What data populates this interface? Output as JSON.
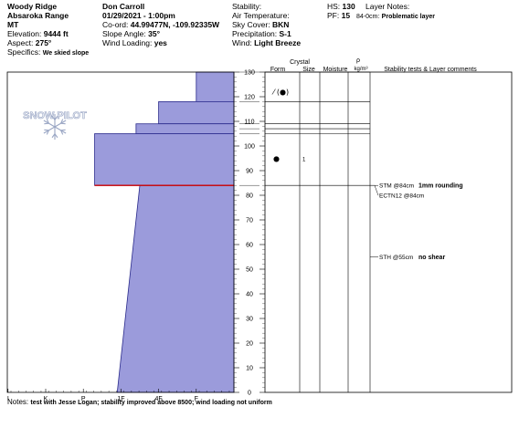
{
  "header": {
    "location": "Woody Ridge",
    "range": "Absaroka Range",
    "state": "MT",
    "elevation_label": "Elevation:",
    "elevation": "9444 ft",
    "aspect_label": "Aspect:",
    "aspect": "275°",
    "specifics_label": "Specifics:",
    "specifics": "We skied slope",
    "observer": "Don Carroll",
    "datetime": "01/29/2021 - 1:00pm",
    "coord_label": "Co-ord:",
    "coord": "44.99477N, -109.92335W",
    "slope_label": "Slope Angle:",
    "slope": "35°",
    "wind_loading_label": "Wind Loading:",
    "wind_loading": "yes",
    "stability_label": "Stability:",
    "stability": "",
    "air_temp_label": "Air Temperature:",
    "air_temp": "",
    "sky_label": "Sky Cover:",
    "sky": "BKN",
    "precip_label": "Precipitation:",
    "precip": "S-1",
    "wind_label": "Wind:",
    "wind": "Light Breeze",
    "hs_label": "HS:",
    "hs": "130",
    "pf_label": "PF:",
    "pf": "15",
    "layer_notes_label": "Layer Notes:",
    "layer_note_depth": "84-0cm:",
    "layer_note_text": "Problematic layer"
  },
  "logo_text": "SNOW PILOT",
  "columns": {
    "form": "Form",
    "crystal": "Crystal",
    "size": "Size",
    "moisture": "Moisture",
    "rho": "ρ",
    "density_unit": "kg/m³",
    "comments": "Stability tests & Layer comments"
  },
  "notes_label": "Notes:",
  "notes": "test with Jesse Logan; stability improved above 8500; wind loading not uniform",
  "colors": {
    "fill": "#9b9bdb",
    "stroke": "#2b2b8c",
    "weak_layer": "#cc0000"
  },
  "chart_data": {
    "type": "snow-profile",
    "depth_axis": {
      "min": 0,
      "max": 130,
      "ticks": [
        "0",
        "10",
        "20",
        "30",
        "40",
        "50",
        "60",
        "70",
        "80",
        "90",
        "100",
        "110",
        "120",
        "130"
      ]
    },
    "hardness_axis": {
      "categories": [
        "I",
        "K",
        "P",
        "1F",
        "4F",
        "F"
      ]
    },
    "hardness_layers": [
      {
        "top": 130,
        "bottom": 118,
        "hardness_index": 1.0
      },
      {
        "top": 118,
        "bottom": 109,
        "hardness_index": 2.0
      },
      {
        "top": 109,
        "bottom": 105,
        "hardness_index": 2.6
      },
      {
        "top": 105,
        "bottom": 84,
        "hardness_index": 3.7
      },
      {
        "top": 84,
        "bottom": 0,
        "hardness_index_top": 2.5,
        "hardness_index_bottom": 3.1
      }
    ],
    "layer_boundaries": [
      130,
      118,
      109,
      107,
      105,
      84
    ],
    "weak_layer_depth": 84,
    "crystals": [
      {
        "depth": 122,
        "form_glyph": "⁄ (●)",
        "size": ""
      },
      {
        "depth": 95,
        "form_glyph": "●",
        "size": "1"
      }
    ],
    "stability_tests": [
      {
        "depth": 84,
        "test": "STM @84cm",
        "comment": "1mm rounding"
      },
      {
        "depth": 84,
        "test": "ECTN12 @84cm",
        "comment": ""
      },
      {
        "depth": 55,
        "test": "STH @55cm",
        "comment": "no shear"
      }
    ]
  }
}
